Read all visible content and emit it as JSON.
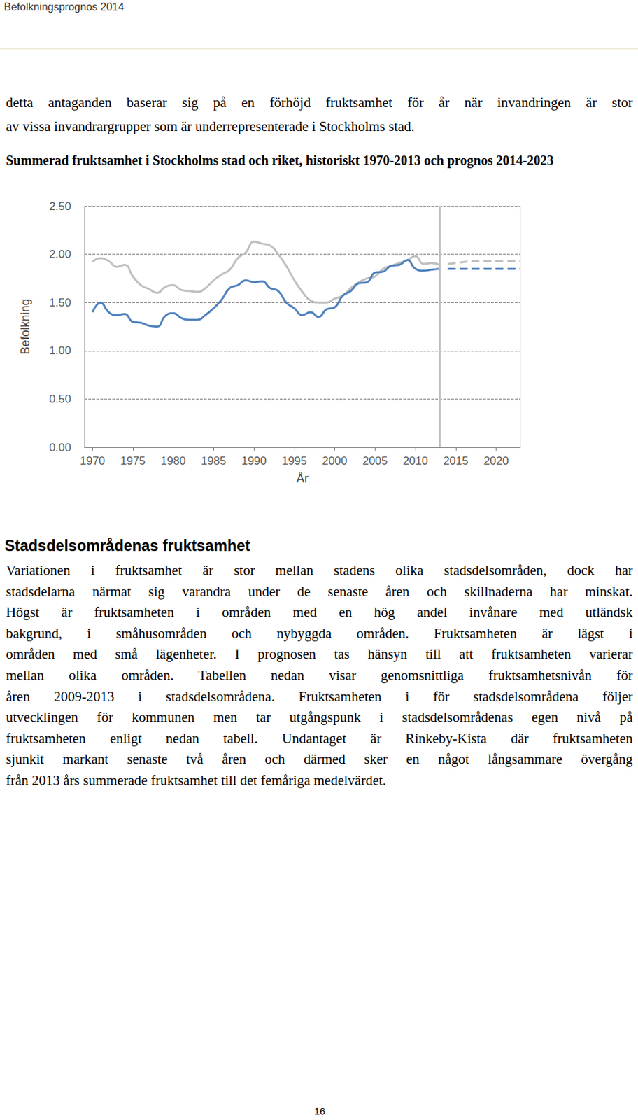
{
  "header": "Befolkningsprognos 2014",
  "intro_lines": [
    "detta antaganden baserar sig på en förhöjd fruktsamhet för år när invandringen är stor",
    "av vissa invandrargrupper som är underrepresenterade i Stockholms stad."
  ],
  "chart_data": {
    "type": "line",
    "title": "Summerad fruktsamhet i Stockholms stad och riket, historiskt 1970-2013 och prognos 2014-2023",
    "x_label": "År",
    "y_label": "Befolkning",
    "x": [
      1970,
      1971,
      1972,
      1973,
      1974,
      1975,
      1976,
      1977,
      1978,
      1979,
      1980,
      1981,
      1982,
      1983,
      1984,
      1985,
      1986,
      1987,
      1988,
      1989,
      1990,
      1991,
      1992,
      1993,
      1994,
      1995,
      1996,
      1997,
      1998,
      1999,
      2000,
      2001,
      2002,
      2003,
      2004,
      2005,
      2006,
      2007,
      2008,
      2009,
      2010,
      2011,
      2012,
      2013,
      2014,
      2015,
      2016,
      2017,
      2018,
      2019,
      2020,
      2021,
      2022,
      2023
    ],
    "xlim": [
      1969,
      2023
    ],
    "xticks": [
      1970,
      1975,
      1980,
      1985,
      1990,
      1995,
      2000,
      2005,
      2010,
      2015,
      2020
    ],
    "ylim": [
      0,
      2.5
    ],
    "yticks": [
      {
        "value": 0,
        "label": "0.00"
      },
      {
        "value": 0.5,
        "label": "0.50"
      },
      {
        "value": 1,
        "label": "1.00"
      },
      {
        "value": 1.5,
        "label": "1.50"
      },
      {
        "value": 2,
        "label": "2.00"
      },
      {
        "value": 2.5,
        "label": "2.50"
      }
    ],
    "grid": true,
    "forecast_start": 2013,
    "series": [
      {
        "color": "#bfbfbf",
        "line_style": "solid",
        "values": [
          1.92,
          1.96,
          1.93,
          1.87,
          1.89,
          1.77,
          1.68,
          1.64,
          1.6,
          1.66,
          1.68,
          1.63,
          1.62,
          1.61,
          1.65,
          1.73,
          1.79,
          1.84,
          1.96,
          2.02,
          2.13,
          2.11,
          2.09,
          2.0,
          1.88,
          1.73,
          1.61,
          1.52,
          1.5,
          1.5,
          1.54,
          1.57,
          1.65,
          1.71,
          1.75,
          1.77,
          1.85,
          1.88,
          1.91,
          1.94,
          1.98,
          1.9,
          1.91,
          1.89,
          null,
          null,
          null,
          null,
          null,
          null,
          null,
          null,
          null,
          null
        ]
      },
      {
        "color": "#bfbfbf",
        "line_style": "dashed",
        "values": [
          null,
          null,
          null,
          null,
          null,
          null,
          null,
          null,
          null,
          null,
          null,
          null,
          null,
          null,
          null,
          null,
          null,
          null,
          null,
          null,
          null,
          null,
          null,
          null,
          null,
          null,
          null,
          null,
          null,
          null,
          null,
          null,
          null,
          null,
          null,
          null,
          null,
          null,
          null,
          null,
          null,
          null,
          null,
          null,
          1.9,
          1.91,
          1.92,
          1.93,
          1.93,
          1.93,
          1.93,
          1.93,
          1.93,
          1.93
        ]
      },
      {
        "color": "#4f81bd",
        "line_style": "solid",
        "values": [
          1.4,
          1.5,
          1.4,
          1.37,
          1.38,
          1.3,
          1.29,
          1.26,
          1.25,
          1.36,
          1.39,
          1.34,
          1.32,
          1.32,
          1.37,
          1.44,
          1.53,
          1.65,
          1.68,
          1.73,
          1.71,
          1.72,
          1.65,
          1.62,
          1.5,
          1.44,
          1.37,
          1.4,
          1.35,
          1.43,
          1.45,
          1.57,
          1.62,
          1.7,
          1.71,
          1.81,
          1.82,
          1.88,
          1.89,
          1.94,
          1.85,
          1.83,
          1.84,
          1.85,
          null,
          null,
          null,
          null,
          null,
          null,
          null,
          null,
          null,
          null
        ]
      },
      {
        "color": "#4f81bd",
        "line_style": "dashed",
        "values": [
          null,
          null,
          null,
          null,
          null,
          null,
          null,
          null,
          null,
          null,
          null,
          null,
          null,
          null,
          null,
          null,
          null,
          null,
          null,
          null,
          null,
          null,
          null,
          null,
          null,
          null,
          null,
          null,
          null,
          null,
          null,
          null,
          null,
          null,
          null,
          null,
          null,
          null,
          null,
          null,
          null,
          null,
          null,
          null,
          1.85,
          1.85,
          1.85,
          1.85,
          1.85,
          1.85,
          1.85,
          1.85,
          1.85,
          1.85
        ]
      }
    ]
  },
  "heading": "Stadsdelsområdenas fruktsamhet",
  "body_lines": [
    "Variationen i fruktsamhet är stor mellan stadens olika stadsdelsområden, dock har",
    "stadsdelarna närmat sig varandra under de senaste åren och skillnaderna har minskat.",
    "Högst är fruktsamheten i områden med en hög andel invånare med utländsk",
    "bakgrund, i småhusområden och nybyggda områden. Fruktsamheten är lägst i",
    "områden med små lägenheter. I prognosen tas hänsyn till att fruktsamheten varierar",
    "mellan olika områden. Tabellen nedan visar genomsnittliga fruktsamhetsnivån för",
    "åren 2009-2013 i stadsdelsområdena. Fruktsamheten i för stadsdelsområdena följer",
    "utvecklingen för kommunen men tar utgångspunk i stadsdelsområdenas egen nivå på",
    "fruktsamheten enligt nedan tabell. Undantaget är Rinkeby-Kista där fruktsamheten",
    "sjunkit markant senaste två åren och därmed sker en något långsammare övergång",
    "från 2013 års summerade fruktsamhet till det femåriga medelvärdet."
  ],
  "page_number": "16"
}
